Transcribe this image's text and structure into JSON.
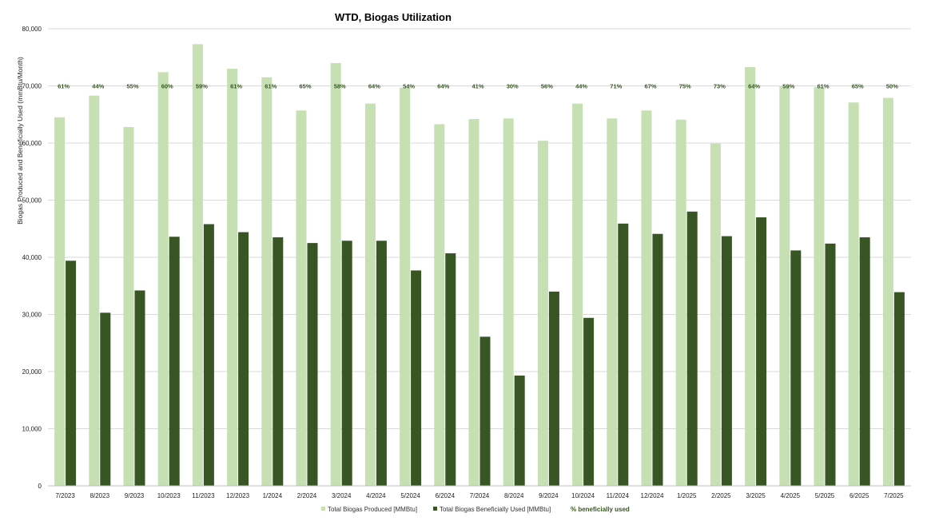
{
  "chart_data": {
    "type": "bar",
    "title": "WTD, Biogas Utilization",
    "ylabel": "Biogas Produced and Beneficially Used (mmBtu/Month)",
    "xlabel": "",
    "ylim": [
      0,
      80000
    ],
    "yticks": [
      "0",
      "10,000",
      "20,000",
      "30,000",
      "40,000",
      "50,000",
      "60,000",
      "70,000",
      "80,000"
    ],
    "ytick_values": [
      0,
      10000,
      20000,
      30000,
      40000,
      50000,
      60000,
      70000,
      80000
    ],
    "grid": true,
    "legend_position": "bottom",
    "categories": [
      "7/2023",
      "8/2023",
      "9/2023",
      "10/2023",
      "11/2023",
      "12/2023",
      "1/2024",
      "2/2024",
      "3/2024",
      "4/2024",
      "5/2024",
      "6/2024",
      "7/2024",
      "8/2024",
      "9/2024",
      "10/2024",
      "11/2024",
      "12/2024",
      "1/2025",
      "2/2025",
      "3/2025",
      "4/2025",
      "5/2025",
      "6/2025",
      "7/2025"
    ],
    "series": [
      {
        "name": "Total Biogas Produced [MMBtu]",
        "color": "#c6e0b4",
        "values": [
          64500,
          68300,
          62800,
          72400,
          77300,
          73000,
          71500,
          65700,
          74000,
          66900,
          69700,
          63300,
          64200,
          64300,
          60400,
          66900,
          64300,
          65700,
          64100,
          59900,
          73300,
          69900,
          69800,
          67100,
          67900
        ]
      },
      {
        "name": "Total Biogas Beneficially Used [MMBtu]",
        "color": "#375623",
        "values": [
          39400,
          30300,
          34200,
          43600,
          45800,
          44400,
          43500,
          42500,
          42900,
          42900,
          37700,
          40700,
          26100,
          19300,
          34000,
          29400,
          45900,
          44100,
          48000,
          43700,
          47000,
          41200,
          42400,
          43500,
          33900
        ]
      }
    ],
    "percent_series": {
      "name": "% beneficially used",
      "color": "#375623",
      "labels": [
        "61%",
        "44%",
        "55%",
        "60%",
        "59%",
        "61%",
        "61%",
        "65%",
        "58%",
        "64%",
        "54%",
        "64%",
        "41%",
        "30%",
        "56%",
        "44%",
        "71%",
        "67%",
        "75%",
        "73%",
        "64%",
        "59%",
        "61%",
        "65%",
        "50%"
      ]
    }
  }
}
